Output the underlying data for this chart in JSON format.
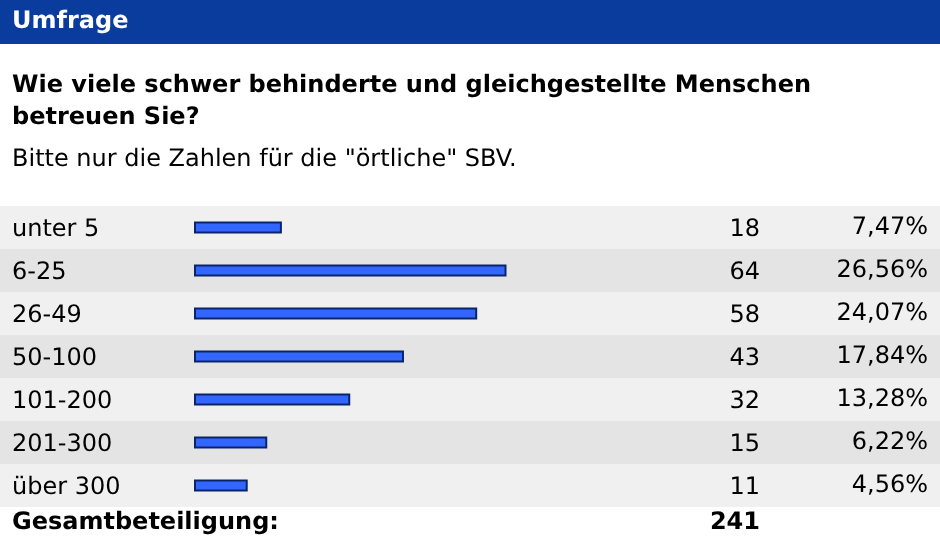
{
  "chart_data": {
    "type": "bar",
    "orientation": "horizontal",
    "title": "Umfrage",
    "subtitle": "Wie viele schwer behinderte und gleichgestellte Menschen betreuen Sie?",
    "annotations": [
      "Bitte nur die Zahlen für die \"örtliche\" SBV.",
      "Gesamtbeteiligung:",
      "241",
      "7,47%",
      "26,56%",
      "24,07%",
      "17,84%",
      "13,28%",
      "6,22%",
      "4,56%"
    ],
    "categories": [
      "unter 5",
      "6-25",
      "26-49",
      "50-100",
      "101-200",
      "201-300",
      "über 300"
    ],
    "values": [
      18,
      64,
      58,
      43,
      32,
      15,
      11
    ],
    "color": "#3366ff",
    "data_labels": true
  }
}
